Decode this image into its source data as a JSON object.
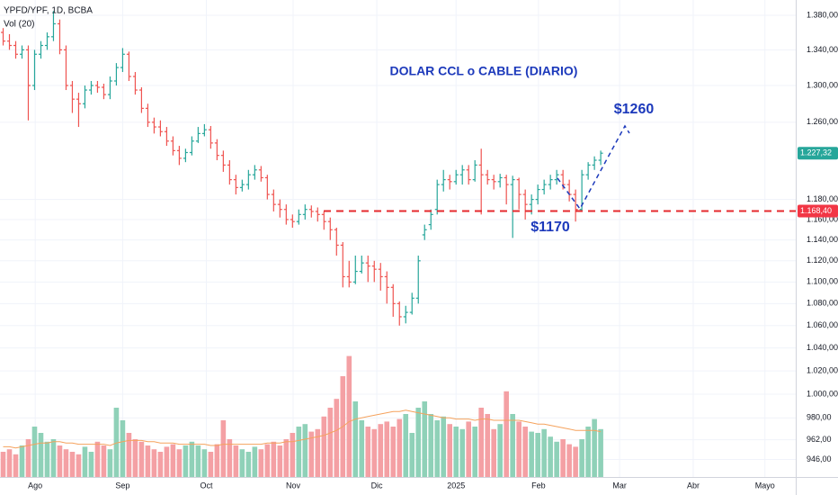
{
  "chart_data": {
    "type": "ohlc",
    "symbol": "YPFD/YPF, 1D, BCBA",
    "volume_label": "Vol (20)",
    "annotation": "DOLAR CCL o CABLE (DIARIO)",
    "target_label": "$1260",
    "support_label": "$1170",
    "log_scale": true,
    "grid": true,
    "up_color": "#26a69a",
    "down_color": "#ef5350",
    "volume_up_color": "#8fd1b8",
    "volume_down_color": "#f4a0a4",
    "ma_color": "#f5a25d",
    "annotation_color": "#1c39bb",
    "level": 1168.4,
    "level_label": "1.168,40",
    "last_label": "1.227,32",
    "xlim": [
      -0.5,
      126
    ],
    "xticks": [
      {
        "value": 5.1,
        "label": "Ago"
      },
      {
        "value": 19,
        "label": "Sep"
      },
      {
        "value": 32.3,
        "label": "Oct"
      },
      {
        "value": 46.1,
        "label": "Nov"
      },
      {
        "value": 59.4,
        "label": "Dic"
      },
      {
        "value": 72,
        "label": "2025"
      },
      {
        "value": 85.1,
        "label": "Feb"
      },
      {
        "value": 98,
        "label": "Mar"
      },
      {
        "value": 109.7,
        "label": "Abr"
      },
      {
        "value": 121.1,
        "label": "Mayo"
      }
    ],
    "ylim": [
      932,
      1398
    ],
    "yticks": [
      {
        "value": 1380,
        "label": "1.380,00"
      },
      {
        "value": 1340,
        "label": "1.340,00"
      },
      {
        "value": 1300,
        "label": "1.300,00"
      },
      {
        "value": 1260,
        "label": "1.260,00"
      },
      {
        "value": 1180,
        "label": "1.180,00"
      },
      {
        "value": 1160,
        "label": "1.160,00"
      },
      {
        "value": 1140,
        "label": "1.140,00"
      },
      {
        "value": 1120,
        "label": "1.120,00"
      },
      {
        "value": 1100,
        "label": "1.100,00"
      },
      {
        "value": 1080,
        "label": "1.080,00"
      },
      {
        "value": 1060,
        "label": "1.060,00"
      },
      {
        "value": 1040,
        "label": "1.040,00"
      },
      {
        "value": 1020,
        "label": "1.020,00"
      },
      {
        "value": 1000,
        "label": "1.000,00"
      },
      {
        "value": 980,
        "label": "980,00"
      },
      {
        "value": 962,
        "label": "962,00"
      },
      {
        "value": 946,
        "label": "946,00"
      }
    ],
    "vlim": [
      0,
      100
    ],
    "open": [
      1360,
      1350,
      1345,
      1335,
      1340,
      1300,
      1335,
      1345,
      1355,
      1370,
      1340,
      1300,
      1285,
      1280,
      1295,
      1300,
      1298,
      1290,
      1305,
      1320,
      1335,
      1310,
      1295,
      1275,
      1260,
      1255,
      1250,
      1240,
      1230,
      1222,
      1228,
      1240,
      1248,
      1252,
      1238,
      1225,
      1215,
      1200,
      1192,
      1195,
      1205,
      1210,
      1202,
      1185,
      1175,
      1170,
      1160,
      1158,
      1165,
      1170,
      1168,
      1165,
      1158,
      1150,
      1135,
      1105,
      1100,
      1110,
      1118,
      1115,
      1112,
      1105,
      1095,
      1080,
      1068,
      1072,
      1085,
      1145,
      1155,
      1170,
      1195,
      1200,
      1198,
      1205,
      1210,
      1200,
      1215,
      1205,
      1200,
      1198,
      1202,
      1195,
      1200,
      1185,
      1175,
      1180,
      1190,
      1195,
      1200,
      1205,
      1195,
      1185,
      1170,
      1205,
      1215,
      1220
    ],
    "high": [
      1365,
      1358,
      1350,
      1345,
      1345,
      1340,
      1350,
      1360,
      1385,
      1375,
      1345,
      1305,
      1292,
      1300,
      1305,
      1305,
      1302,
      1310,
      1325,
      1342,
      1338,
      1315,
      1298,
      1280,
      1265,
      1262,
      1255,
      1245,
      1235,
      1232,
      1245,
      1255,
      1258,
      1256,
      1242,
      1230,
      1220,
      1205,
      1200,
      1210,
      1215,
      1214,
      1205,
      1190,
      1180,
      1175,
      1165,
      1170,
      1175,
      1174,
      1172,
      1168,
      1162,
      1152,
      1138,
      1120,
      1125,
      1125,
      1125,
      1120,
      1118,
      1110,
      1098,
      1082,
      1078,
      1090,
      1125,
      1155,
      1170,
      1200,
      1210,
      1205,
      1210,
      1215,
      1215,
      1220,
      1232,
      1210,
      1205,
      1206,
      1205,
      1204,
      1202,
      1190,
      1185,
      1195,
      1200,
      1205,
      1210,
      1210,
      1200,
      1190,
      1210,
      1218,
      1224,
      1230
    ],
    "low": [
      1345,
      1340,
      1330,
      1330,
      1262,
      1295,
      1330,
      1340,
      1350,
      1335,
      1295,
      1270,
      1255,
      1275,
      1290,
      1292,
      1285,
      1285,
      1300,
      1315,
      1305,
      1290,
      1270,
      1255,
      1248,
      1245,
      1235,
      1225,
      1215,
      1218,
      1225,
      1238,
      1245,
      1232,
      1220,
      1208,
      1195,
      1185,
      1188,
      1190,
      1200,
      1198,
      1180,
      1168,
      1162,
      1155,
      1152,
      1155,
      1160,
      1162,
      1158,
      1150,
      1140,
      1125,
      1095,
      1095,
      1098,
      1108,
      1100,
      1100,
      1092,
      1080,
      1068,
      1060,
      1062,
      1070,
      1080,
      1140,
      1150,
      1165,
      1188,
      1190,
      1195,
      1195,
      1195,
      1198,
      1165,
      1195,
      1190,
      1192,
      1175,
      1142,
      1170,
      1160,
      1165,
      1175,
      1185,
      1190,
      1195,
      1190,
      1178,
      1158,
      1168,
      1200,
      1210,
      1215
    ],
    "close": [
      1350,
      1345,
      1335,
      1340,
      1300,
      1335,
      1345,
      1355,
      1370,
      1340,
      1300,
      1285,
      1280,
      1295,
      1300,
      1298,
      1290,
      1305,
      1320,
      1335,
      1310,
      1295,
      1275,
      1260,
      1255,
      1250,
      1240,
      1230,
      1222,
      1228,
      1240,
      1248,
      1252,
      1238,
      1225,
      1215,
      1200,
      1192,
      1195,
      1205,
      1210,
      1202,
      1185,
      1175,
      1170,
      1160,
      1158,
      1165,
      1170,
      1168,
      1165,
      1158,
      1150,
      1135,
      1105,
      1100,
      1110,
      1118,
      1115,
      1112,
      1105,
      1095,
      1080,
      1068,
      1072,
      1085,
      1120,
      1150,
      1165,
      1195,
      1200,
      1198,
      1205,
      1210,
      1200,
      1215,
      1205,
      1200,
      1198,
      1202,
      1195,
      1200,
      1185,
      1175,
      1180,
      1190,
      1195,
      1200,
      1205,
      1195,
      1185,
      1170,
      1205,
      1215,
      1220,
      1227.32
    ],
    "volume": [
      20,
      22,
      18,
      25,
      30,
      40,
      35,
      28,
      30,
      25,
      22,
      20,
      18,
      24,
      20,
      28,
      25,
      22,
      55,
      45,
      35,
      30,
      28,
      25,
      22,
      20,
      24,
      26,
      22,
      25,
      28,
      25,
      22,
      20,
      26,
      45,
      30,
      25,
      22,
      20,
      24,
      22,
      26,
      28,
      25,
      30,
      35,
      40,
      42,
      36,
      38,
      48,
      55,
      62,
      80,
      96,
      60,
      45,
      40,
      38,
      42,
      44,
      40,
      46,
      50,
      35,
      55,
      60,
      50,
      45,
      48,
      42,
      40,
      38,
      44,
      40,
      55,
      50,
      38,
      42,
      68,
      50,
      44,
      40,
      36,
      35,
      38,
      32,
      28,
      30,
      26,
      24,
      30,
      40,
      46,
      38
    ],
    "volume_ma": [
      24,
      24,
      23,
      24,
      25,
      26,
      27,
      27,
      28,
      28,
      27,
      27,
      26,
      26,
      26,
      26,
      26,
      25,
      27,
      28,
      29,
      29,
      29,
      28,
      28,
      27,
      27,
      27,
      26,
      26,
      26,
      26,
      26,
      25,
      25,
      26,
      26,
      26,
      26,
      26,
      26,
      26,
      27,
      27,
      27,
      28,
      28,
      29,
      30,
      31,
      32,
      33,
      35,
      37,
      40,
      44,
      46,
      47,
      48,
      49,
      50,
      51,
      52,
      52,
      53,
      52,
      51,
      50,
      49,
      48,
      47,
      47,
      46,
      46,
      46,
      45,
      46,
      46,
      45,
      45,
      45,
      45,
      45,
      44,
      43,
      42,
      42,
      41,
      40,
      39,
      38,
      37,
      37,
      37,
      37,
      36
    ]
  }
}
